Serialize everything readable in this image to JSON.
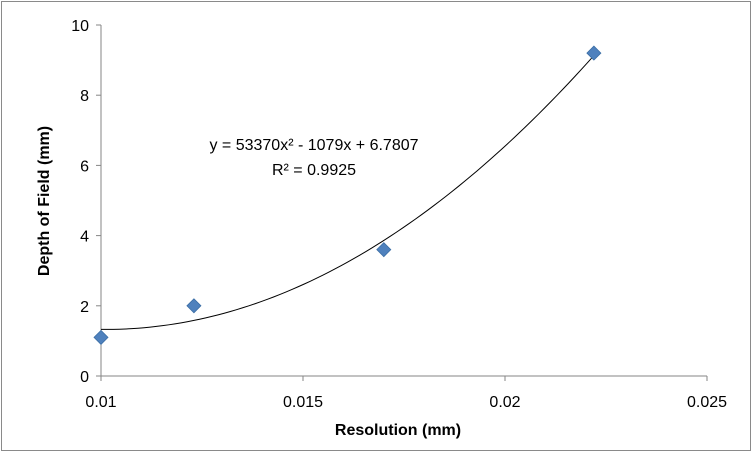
{
  "chart_data": {
    "type": "scatter",
    "title": "",
    "xlabel": "Resolution (mm)",
    "ylabel": "Depth of Field (mm)",
    "xlim": [
      0.01,
      0.025
    ],
    "ylim": [
      0,
      10
    ],
    "x_ticks": [
      0.01,
      0.015,
      0.02,
      0.025
    ],
    "x_tick_labels": [
      "0.01",
      "0.015",
      "0.02",
      "0.025"
    ],
    "y_ticks": [
      0,
      2,
      4,
      6,
      8,
      10
    ],
    "y_tick_labels": [
      "0",
      "2",
      "4",
      "6",
      "8",
      "10"
    ],
    "grid": false,
    "legend": "none",
    "series": [
      {
        "marker": "diamond",
        "color": "#4F81BD",
        "x": [
          0.01,
          0.0123,
          0.017,
          0.0222
        ],
        "y": [
          1.1,
          2.0,
          3.6,
          9.2
        ]
      }
    ],
    "trendline": {
      "type": "polynomial",
      "coefficients": [
        53370,
        -1079,
        6.7807
      ],
      "equation_text": "y = 53370x² - 1079x + 6.7807",
      "r2_text": "R² = 0.9925",
      "color": "#000000"
    }
  }
}
